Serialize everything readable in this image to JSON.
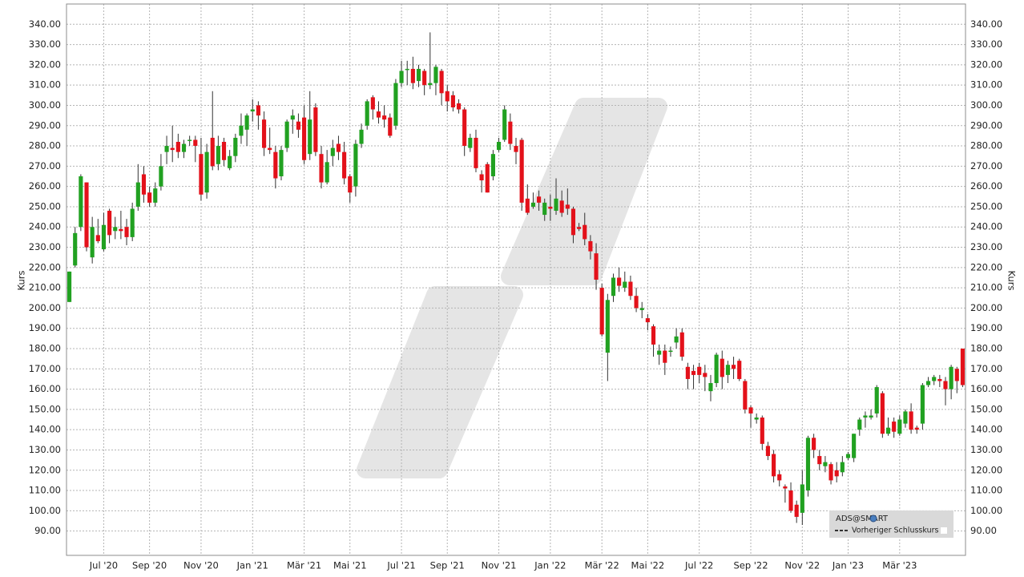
{
  "chart_data": {
    "type": "candlestick",
    "y_label": "Kurs",
    "legend": "bottom-right",
    "legend_extra": "Vorheriger Schlusskurs",
    "grid": true,
    "up_color": "#21a121",
    "down_color": "#e3111a",
    "ylim": [
      78,
      350
    ],
    "yticks": [
      {
        "value": 90,
        "label": "90.00"
      },
      {
        "value": 100,
        "label": "100.00"
      },
      {
        "value": 110,
        "label": "110.00"
      },
      {
        "value": 120,
        "label": "120.00"
      },
      {
        "value": 130,
        "label": "130.00"
      },
      {
        "value": 140,
        "label": "140.00"
      },
      {
        "value": 150,
        "label": "150.00"
      },
      {
        "value": 160,
        "label": "160.00"
      },
      {
        "value": 170,
        "label": "170.00"
      },
      {
        "value": 180,
        "label": "180.00"
      },
      {
        "value": 190,
        "label": "190.00"
      },
      {
        "value": 200,
        "label": "200.00"
      },
      {
        "value": 210,
        "label": "210.00"
      },
      {
        "value": 220,
        "label": "220.00"
      },
      {
        "value": 230,
        "label": "230.00"
      },
      {
        "value": 240,
        "label": "240.00"
      },
      {
        "value": 250,
        "label": "250.00"
      },
      {
        "value": 260,
        "label": "260.00"
      },
      {
        "value": 270,
        "label": "270.00"
      },
      {
        "value": 280,
        "label": "280.00"
      },
      {
        "value": 290,
        "label": "290.00"
      },
      {
        "value": 300,
        "label": "300.00"
      },
      {
        "value": 310,
        "label": "310.00"
      },
      {
        "value": 320,
        "label": "320.00"
      },
      {
        "value": 330,
        "label": "330.00"
      },
      {
        "value": 340,
        "label": "340.00"
      }
    ],
    "categories": [
      null,
      null,
      null,
      null,
      null,
      null,
      "Jul '20",
      null,
      null,
      null,
      null,
      null,
      null,
      null,
      "Sep '20",
      null,
      null,
      null,
      null,
      null,
      null,
      null,
      null,
      "Nov '20",
      null,
      null,
      null,
      null,
      null,
      null,
      null,
      null,
      "Jan '21",
      null,
      null,
      null,
      null,
      null,
      null,
      null,
      null,
      "Mär '21",
      null,
      null,
      null,
      null,
      null,
      null,
      null,
      "Mai '21",
      null,
      null,
      null,
      null,
      null,
      null,
      null,
      null,
      "Jul '21",
      null,
      null,
      null,
      null,
      null,
      null,
      null,
      "Sep '21",
      null,
      null,
      null,
      null,
      null,
      null,
      null,
      null,
      "Nov '21",
      null,
      null,
      null,
      null,
      null,
      null,
      null,
      null,
      "Jan '22",
      null,
      null,
      null,
      null,
      null,
      null,
      null,
      null,
      "Mär '22",
      null,
      null,
      null,
      null,
      null,
      null,
      null,
      "Mai '22",
      null,
      null,
      null,
      null,
      null,
      null,
      null,
      null,
      "Jul '22",
      null,
      null,
      null,
      null,
      null,
      null,
      null,
      null,
      "Sep '22",
      null,
      null,
      null,
      null,
      null,
      null,
      null,
      null,
      "Nov '22",
      null,
      null,
      null,
      null,
      null,
      null,
      null,
      "Jan '23",
      null,
      null,
      null,
      null,
      null,
      null,
      null,
      null,
      "Mär '23",
      null,
      null,
      null,
      null,
      null,
      null,
      null,
      null,
      null,
      null,
      null
    ],
    "series": [
      {
        "name": "ADS@SMART",
        "open": [
          203,
          221,
          240,
          262,
          225,
          236,
          229,
          248,
          238,
          239,
          240,
          235,
          250,
          266,
          257,
          252,
          260,
          277,
          279,
          282,
          277,
          283,
          283,
          276,
          257,
          284,
          271,
          282,
          269,
          275,
          285,
          288,
          297,
          300,
          293,
          279,
          277,
          265,
          279,
          293,
          292,
          294,
          276,
          299,
          276,
          262,
          275,
          281,
          277,
          265,
          260,
          281,
          290,
          304,
          297,
          295,
          294,
          290,
          311,
          318,
          318,
          312,
          317,
          310,
          311,
          317,
          307,
          305,
          301,
          298,
          279,
          284,
          266,
          271,
          265,
          278,
          283,
          292,
          280,
          283,
          254,
          250,
          255,
          246,
          250,
          248,
          253,
          251,
          249,
          240,
          241,
          233,
          227,
          210,
          178,
          206,
          215,
          210,
          213,
          206,
          199,
          195,
          191,
          177,
          179,
          179,
          183,
          188,
          171,
          169,
          171,
          168,
          159,
          163,
          175,
          167,
          172,
          174,
          164,
          151,
          145,
          146,
          132,
          128,
          118,
          112,
          110,
          103,
          99,
          110,
          136,
          127,
          122,
          123,
          120,
          119,
          126,
          126,
          140,
          146,
          146,
          148,
          158,
          138,
          144,
          138,
          143,
          149,
          141,
          143,
          162,
          164,
          165,
          164,
          160,
          170,
          180
        ],
        "high": [
          218,
          240,
          266,
          262,
          245,
          244,
          247,
          249,
          245,
          248,
          244,
          252,
          271,
          270,
          260,
          262,
          276,
          285,
          290,
          286,
          283,
          285,
          285,
          284,
          281,
          307,
          285,
          284,
          278,
          286,
          296,
          296,
          303,
          302,
          297,
          289,
          280,
          280,
          293,
          298,
          296,
          300,
          307,
          301,
          280,
          278,
          283,
          285,
          282,
          266,
          283,
          291,
          303,
          305,
          302,
          300,
          296,
          313,
          322,
          322,
          324,
          320,
          318,
          336,
          320,
          318,
          310,
          307,
          303,
          299,
          286,
          288,
          268,
          272,
          278,
          284,
          300,
          296,
          284,
          284,
          261,
          257,
          258,
          254,
          256,
          264,
          258,
          259,
          250,
          242,
          247,
          236,
          232,
          212,
          207,
          217,
          220,
          218,
          216,
          210,
          203,
          197,
          192,
          182,
          182,
          181,
          190,
          190,
          173,
          172,
          173,
          172,
          167,
          178,
          179,
          174,
          176,
          175,
          165,
          152,
          148,
          147,
          134,
          130,
          120,
          113,
          114,
          105,
          120,
          137,
          138,
          130,
          127,
          124,
          124,
          127,
          129,
          138,
          146,
          149,
          150,
          162,
          159,
          146,
          146,
          147,
          150,
          153,
          142,
          163,
          166,
          167,
          167,
          166,
          172,
          171,
          180
        ],
        "low": [
          203,
          220,
          238,
          228,
          222,
          232,
          228,
          232,
          234,
          234,
          231,
          233,
          248,
          252,
          250,
          250,
          258,
          271,
          272,
          274,
          274,
          280,
          272,
          253,
          254,
          268,
          268,
          270,
          268,
          272,
          281,
          280,
          292,
          288,
          275,
          276,
          259,
          263,
          277,
          286,
          284,
          271,
          273,
          275,
          259,
          261,
          270,
          273,
          261,
          252,
          255,
          279,
          288,
          293,
          291,
          289,
          284,
          288,
          309,
          310,
          308,
          309,
          305,
          308,
          305,
          300,
          297,
          297,
          296,
          275,
          277,
          267,
          257,
          257,
          263,
          277,
          282,
          278,
          271,
          248,
          246,
          249,
          248,
          243,
          243,
          246,
          245,
          246,
          232,
          238,
          231,
          224,
          209,
          186,
          164,
          203,
          208,
          208,
          204,
          198,
          195,
          189,
          176,
          172,
          167,
          176,
          180,
          174,
          160,
          160,
          163,
          159,
          154,
          161,
          160,
          163,
          165,
          164,
          148,
          141,
          143,
          130,
          125,
          114,
          112,
          104,
          99,
          94,
          93,
          107,
          126,
          120,
          119,
          113,
          114,
          117,
          125,
          124,
          137,
          141,
          145,
          146,
          136,
          137,
          136,
          137,
          141,
          138,
          138,
          140,
          161,
          162,
          161,
          152,
          155,
          158,
          161
        ],
        "close": [
          218,
          237,
          265,
          230,
          240,
          233,
          241,
          236,
          240,
          238,
          235,
          249,
          262,
          256,
          252,
          259,
          270,
          280,
          278,
          277,
          281,
          283,
          280,
          256,
          277,
          270,
          280,
          273,
          275,
          284,
          290,
          295,
          298,
          295,
          279,
          278,
          264,
          278,
          292,
          295,
          288,
          273,
          293,
          277,
          262,
          272,
          279,
          277,
          264,
          257,
          281,
          288,
          302,
          298,
          294,
          293,
          285,
          311,
          317,
          318,
          311,
          318,
          310,
          311,
          319,
          306,
          302,
          299,
          298,
          280,
          284,
          269,
          263,
          257,
          276,
          282,
          298,
          281,
          277,
          252,
          247,
          252,
          252,
          252,
          249,
          254,
          247,
          249,
          236,
          239,
          234,
          228,
          214,
          187,
          204,
          215,
          211,
          213,
          206,
          200,
          200,
          193,
          182,
          179,
          173,
          179,
          186,
          176,
          165,
          167,
          167,
          166,
          163,
          177,
          166,
          172,
          170,
          165,
          150,
          148,
          146,
          133,
          127,
          117,
          115,
          111,
          100,
          97,
          113,
          136,
          130,
          123,
          124,
          115,
          117,
          124,
          128,
          138,
          145,
          147,
          147,
          161,
          138,
          141,
          139,
          145,
          149,
          140,
          140,
          162,
          164,
          166,
          164,
          160,
          171,
          164,
          162
        ]
      }
    ]
  }
}
